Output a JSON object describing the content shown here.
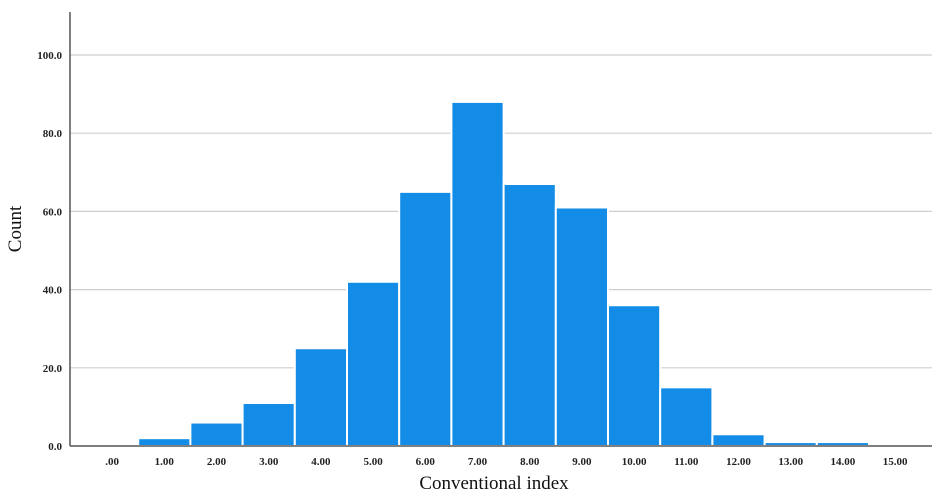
{
  "chart_data": {
    "type": "bar",
    "title": "",
    "xlabel": "Conventional index",
    "ylabel": "Count",
    "categories": [
      ".00",
      "1.00",
      "2.00",
      "3.00",
      "4.00",
      "5.00",
      "6.00",
      "7.00",
      "8.00",
      "9.00",
      "10.00",
      "11.00",
      "12.00",
      "13.00",
      "14.00",
      "15.00"
    ],
    "values": [
      0,
      2,
      6,
      11,
      25,
      42,
      65,
      88,
      67,
      61,
      36,
      15,
      3,
      1,
      1,
      0
    ],
    "y_ticks": [
      "0.0",
      "20.0",
      "40.0",
      "60.0",
      "80.0",
      "100.0"
    ],
    "ylim": [
      0,
      110
    ],
    "grid": true,
    "bar_color": "#128ce6",
    "bar_edge_color": "#ffffff",
    "grid_color": "#cfcfcf",
    "axis_color": "#555555"
  }
}
